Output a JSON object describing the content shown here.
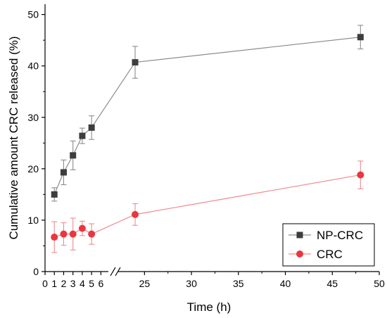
{
  "chart_data": {
    "type": "line",
    "xlabel": "Time (h)",
    "ylabel": "Cumulative amount CRC released (%)",
    "axis_break": {
      "from": 6.5,
      "to": 22.5,
      "marker": "//"
    },
    "x_ticks_left": [
      "0",
      "1",
      "2",
      "3",
      "4",
      "5",
      "6"
    ],
    "x_ticks_right": [
      "25",
      "30",
      "35",
      "40",
      "45",
      "50"
    ],
    "y_ticks": [
      "0",
      "10",
      "20",
      "30",
      "40",
      "50"
    ],
    "xlim": [
      0,
      50
    ],
    "ylim": [
      0,
      52
    ],
    "legend_position": "bottom-right",
    "series": [
      {
        "name": "NP-CRC",
        "marker": "square",
        "color": "#3d3d3d",
        "line_color": "#8c8c8c",
        "points": [
          {
            "x": 1,
            "y": 15.0,
            "err": 1.3
          },
          {
            "x": 2,
            "y": 19.3,
            "err": 2.4
          },
          {
            "x": 3,
            "y": 22.6,
            "err": 2.8
          },
          {
            "x": 4,
            "y": 26.4,
            "err": 1.5
          },
          {
            "x": 5,
            "y": 28.0,
            "err": 2.3
          },
          {
            "x": 24,
            "y": 40.7,
            "err": 3.1
          },
          {
            "x": 48,
            "y": 45.6,
            "err": 2.3
          }
        ]
      },
      {
        "name": "CRC",
        "marker": "circle",
        "color": "#e8373f",
        "line_color": "#f08a8e",
        "points": [
          {
            "x": 1,
            "y": 6.7,
            "err": 3.0
          },
          {
            "x": 2,
            "y": 7.3,
            "err": 2.2
          },
          {
            "x": 3,
            "y": 7.3,
            "err": 3.1
          },
          {
            "x": 4,
            "y": 8.4,
            "err": 1.4
          },
          {
            "x": 5,
            "y": 7.3,
            "err": 2.0
          },
          {
            "x": 24,
            "y": 11.1,
            "err": 2.1
          },
          {
            "x": 48,
            "y": 18.8,
            "err": 2.7
          }
        ]
      }
    ]
  }
}
